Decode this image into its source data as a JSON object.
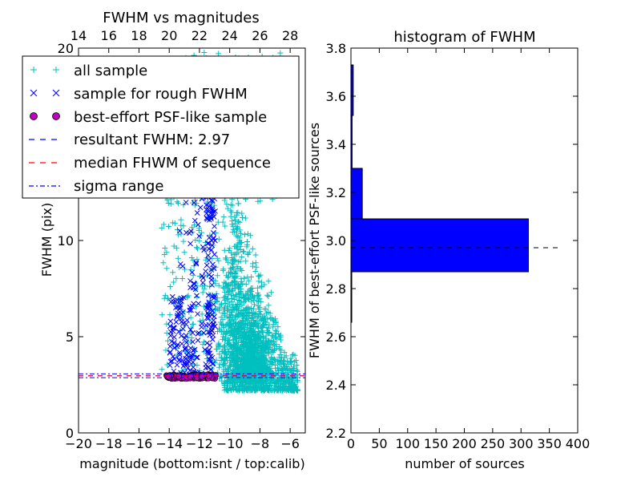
{
  "chart_data": [
    {
      "type": "scatter",
      "title": "FWHM vs magnitudes",
      "xlabel": "magnitude (bottom:isnt / top:calib)",
      "ylabel": "FWHM (pix)",
      "xlim": [
        -20,
        -5
      ],
      "ylim": [
        0,
        20
      ],
      "x_ticks": [
        -20,
        -18,
        -16,
        -14,
        -12,
        -10,
        -8,
        -6
      ],
      "x_tick_labels": [
        "−20",
        "−18",
        "−16",
        "−14",
        "−12",
        "−10",
        "−8",
        "−6"
      ],
      "y_ticks": [
        0,
        5,
        10,
        20
      ],
      "top_x_ticks": [
        14,
        16,
        18,
        20,
        22,
        24,
        26,
        28
      ],
      "top_x_tick_labels": [
        "14",
        "16",
        "18",
        "20",
        "22",
        "24",
        "26",
        "28"
      ],
      "top_x_offset": 34,
      "grid": false,
      "legend_position": "top-left",
      "legend": [
        {
          "label": "all sample",
          "marker": "+",
          "color": "#00bfbf"
        },
        {
          "label": "sample for rough FWHM",
          "marker": "x",
          "color": "#0000ff"
        },
        {
          "label": "best-effort PSF-like sample",
          "marker": "o",
          "color": "#bf00bf"
        },
        {
          "label": "resultant FWHM: 2.97",
          "line": "dashed",
          "color": "#0000ff"
        },
        {
          "label": "median FHWM of sequence",
          "line": "dashed",
          "color": "#ff0000"
        },
        {
          "label": "sigma range",
          "line": "dashdot",
          "color": "#0000ff"
        }
      ],
      "series": [
        {
          "name": "all sample",
          "marker": "+",
          "color": "#00bfbf",
          "x_range": [
            -15,
            -5.2
          ],
          "y_range": [
            1.7,
            20
          ],
          "peak_region": [
            -10,
            -8
          ]
        },
        {
          "name": "sample for rough FWHM",
          "marker": "x",
          "color": "#0000ff",
          "x_range": [
            -14.5,
            -11
          ],
          "y_range": [
            2.8,
            12.6
          ]
        },
        {
          "name": "best-effort PSF-like sample",
          "marker": "o",
          "color": "#bf00bf",
          "x_range": [
            -14.2,
            -10.9
          ],
          "y_range": [
            2.85,
            3.1
          ]
        }
      ],
      "hlines": [
        {
          "name": "resultant FWHM",
          "y": 2.97,
          "color": "#0000ff",
          "style": "dashed"
        },
        {
          "name": "median FHWM of sequence",
          "y": 2.97,
          "color": "#ff0000",
          "style": "dashed"
        },
        {
          "name": "sigma range",
          "y": [
            2.87,
            3.07
          ],
          "color": "#0000ff",
          "style": "dashdot"
        }
      ]
    },
    {
      "type": "bar",
      "orientation": "horizontal",
      "title": "histogram of FWHM",
      "xlabel": "number of sources",
      "ylabel": "FWHM of best-effort PSF-like sources",
      "xlim": [
        0,
        400
      ],
      "ylim": [
        2.2,
        3.8
      ],
      "x_ticks": [
        0,
        50,
        100,
        150,
        200,
        250,
        300,
        350,
        400
      ],
      "y_ticks": [
        2.2,
        2.4,
        2.6,
        2.8,
        3.0,
        3.2,
        3.4,
        3.6,
        3.8
      ],
      "y_tick_labels": [
        "2.2",
        "2.4",
        "2.6",
        "2.8",
        "3.0",
        "3.2",
        "3.4",
        "3.6",
        "3.8"
      ],
      "bar_color": "#0000ff",
      "bins": [
        {
          "from": 2.66,
          "to": 2.87,
          "count": 1
        },
        {
          "from": 2.87,
          "to": 3.09,
          "count": 313
        },
        {
          "from": 3.09,
          "to": 3.3,
          "count": 20
        },
        {
          "from": 3.3,
          "to": 3.52,
          "count": 2
        },
        {
          "from": 3.52,
          "to": 3.73,
          "count": 4
        }
      ],
      "reference_line": {
        "y": 2.97,
        "x_to": 370,
        "style": "dashed",
        "color": "#000000"
      }
    }
  ]
}
